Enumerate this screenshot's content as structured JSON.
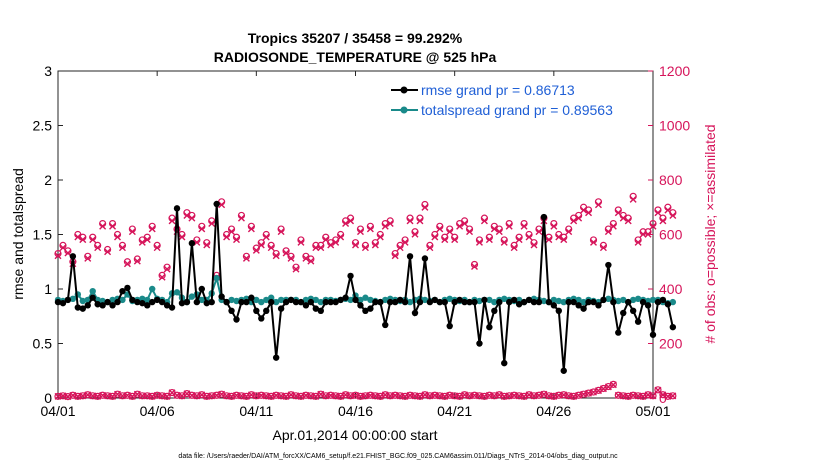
{
  "chart_data": {
    "type": "line",
    "title_line1": "Tropics 35207 / 35458 = 99.292%",
    "title_line2": "RADIOSONDE_TEMPERATURE @ 525 hPa",
    "xlabel": "Apr.01,2014 00:00:00 start",
    "ylabel_left": "rmse and totalspread",
    "ylabel_right": "# of obs: o=possible; ×=assimilated",
    "footnote": "data file: /Users/raeder/DAI/ATM_forcXX/CAM6_setup/f.e21.FHIST_BGC.f09_025.CAM6assim.011/Diags_NTrS_2014-04/obs_diag_output.nc",
    "xlim": [
      0,
      30
    ],
    "ylim_left": [
      0,
      3
    ],
    "ylim_right": [
      0,
      1200
    ],
    "x_ticks": [
      0,
      5,
      10,
      15,
      20,
      25,
      30
    ],
    "x_tick_labels": [
      "04/01",
      "04/06",
      "04/11",
      "04/16",
      "04/21",
      "04/26",
      "05/01"
    ],
    "y_left_ticks": [
      "0",
      "0.5",
      "1",
      "1.5",
      "2",
      "2.5",
      "3"
    ],
    "y_right_ticks": [
      "0",
      "200",
      "400",
      "600",
      "800",
      "1000",
      "1200"
    ],
    "colors": {
      "rmse": "#000000",
      "spread": "#1a8a8a",
      "obs": "#d6145a",
      "legend_text": "#1f5fd6"
    },
    "x_step_days": 0.25,
    "series": [
      {
        "name": "rmse grand pr = 0.86713",
        "axis": "left",
        "values": [
          0.88,
          0.87,
          0.9,
          1.3,
          0.83,
          0.82,
          0.85,
          0.92,
          0.86,
          0.85,
          0.88,
          0.85,
          0.88,
          0.98,
          1.01,
          0.9,
          0.88,
          0.87,
          0.85,
          0.88,
          0.9,
          0.88,
          0.85,
          0.83,
          1.74,
          0.87,
          0.88,
          1.42,
          0.88,
          1.0,
          0.87,
          0.88,
          1.78,
          0.93,
          0.88,
          0.8,
          0.72,
          0.88,
          0.88,
          0.92,
          0.8,
          0.73,
          0.8,
          0.88,
          0.37,
          0.82,
          0.88,
          0.9,
          0.88,
          0.88,
          0.85,
          0.88,
          0.82,
          0.8,
          0.88,
          0.88,
          0.88,
          0.9,
          0.92,
          1.12,
          0.9,
          0.85,
          0.8,
          0.82,
          0.88,
          0.88,
          0.67,
          0.88,
          0.88,
          0.9,
          0.88,
          1.3,
          0.78,
          0.88,
          1.28,
          0.88,
          0.9,
          0.88,
          0.88,
          0.66,
          0.88,
          0.9,
          0.88,
          0.88,
          0.88,
          0.5,
          0.9,
          0.65,
          0.8,
          0.88,
          0.32,
          0.88,
          0.9,
          0.86,
          0.88,
          0.9,
          0.88,
          0.88,
          1.66,
          0.88,
          0.85,
          0.8,
          0.25,
          0.88,
          0.88,
          0.85,
          0.82,
          0.88,
          0.88,
          0.85,
          0.9,
          1.22,
          0.88,
          0.6,
          0.78,
          0.88,
          0.8,
          0.7,
          0.88,
          0.85,
          0.58,
          0.88,
          0.9,
          0.86,
          0.65
        ]
      },
      {
        "name": "totalspread grand pr = 0.89563",
        "axis": "left",
        "values": [
          0.9,
          0.89,
          0.9,
          0.91,
          0.95,
          0.89,
          0.9,
          0.98,
          0.9,
          0.89,
          0.88,
          0.9,
          0.91,
          0.9,
          0.95,
          0.89,
          0.9,
          0.91,
          0.9,
          1.0,
          0.91,
          0.9,
          0.88,
          0.96,
          0.97,
          0.92,
          0.88,
          0.93,
          0.95,
          0.9,
          0.9,
          0.96,
          1.1,
          0.9,
          0.88,
          0.9,
          0.89,
          0.9,
          0.91,
          0.88,
          0.9,
          0.88,
          0.9,
          0.92,
          0.88,
          0.9,
          0.9,
          0.9,
          0.9,
          0.88,
          0.9,
          0.91,
          0.9,
          0.88,
          0.9,
          0.9,
          0.89,
          0.9,
          0.91,
          0.9,
          0.94,
          0.9,
          0.92,
          0.9,
          0.89,
          0.88,
          0.9,
          0.91,
          0.9,
          0.89,
          0.9,
          0.88,
          0.9,
          0.91,
          0.9,
          0.89,
          0.9,
          0.88,
          0.9,
          0.91,
          0.9,
          0.89,
          0.9,
          0.88,
          0.9,
          0.89,
          0.9,
          0.9,
          0.88,
          0.9,
          0.91,
          0.9,
          0.89,
          0.9,
          0.88,
          0.9,
          0.91,
          0.9,
          0.89,
          0.88,
          0.9,
          0.89,
          0.88,
          0.9,
          0.91,
          0.9,
          0.88,
          0.9,
          0.89,
          0.88,
          0.9,
          0.91,
          0.9,
          0.89,
          0.9,
          0.88,
          0.9,
          0.91,
          0.9,
          0.89,
          0.9,
          0.9,
          0.88,
          0.87,
          0.88
        ]
      },
      {
        "name": "obs possible (o)",
        "axis": "right",
        "values": [
          530,
          560,
          540,
          500,
          600,
          590,
          520,
          590,
          560,
          640,
          545,
          640,
          600,
          560,
          500,
          620,
          510,
          580,
          590,
          630,
          560,
          450,
          480,
          660,
          620,
          600,
          680,
          670,
          580,
          630,
          570,
          650,
          450,
          720,
          600,
          620,
          590,
          670,
          520,
          630,
          550,
          570,
          600,
          560,
          530,
          620,
          540,
          520,
          480,
          580,
          520,
          510,
          560,
          560,
          590,
          570,
          580,
          600,
          650,
          660,
          570,
          620,
          560,
          630,
          570,
          600,
          640,
          650,
          530,
          560,
          580,
          660,
          610,
          660,
          710,
          560,
          600,
          630,
          590,
          620,
          590,
          640,
          650,
          620,
          490,
          580,
          660,
          590,
          630,
          620,
          580,
          640,
          560,
          590,
          640,
          600,
          570,
          620,
          660,
          590,
          640,
          600,
          590,
          620,
          660,
          670,
          700,
          690,
          580,
          720,
          560,
          620,
          640,
          690,
          670,
          660,
          740,
          580,
          610,
          610,
          640,
          690,
          660,
          700,
          680
        ],
        "assimilated_scale": 0.985
      },
      {
        "name": "obs lowband (o)",
        "axis": "right",
        "values": [
          6,
          8,
          5,
          10,
          6,
          8,
          12,
          8,
          6,
          10,
          8,
          6,
          14,
          8,
          10,
          6,
          14,
          8,
          8,
          6,
          10,
          8,
          6,
          20,
          10,
          8,
          16,
          10,
          8,
          12,
          6,
          8,
          10,
          14,
          8,
          6,
          10,
          8,
          6,
          12,
          8,
          10,
          8,
          6,
          10,
          8,
          6,
          12,
          8,
          6,
          10,
          8,
          6,
          14,
          8,
          10,
          8,
          6,
          12,
          8,
          10,
          6,
          8,
          10,
          8,
          6,
          12,
          8,
          10,
          8,
          6,
          10,
          8,
          6,
          12,
          8,
          10,
          8,
          6,
          10,
          8,
          6,
          12,
          8,
          10,
          8,
          6,
          10,
          8,
          12,
          6,
          8,
          10,
          8,
          6,
          12,
          8,
          10,
          14,
          8,
          6,
          10,
          12,
          8,
          6,
          10,
          14,
          18,
          22,
          28,
          35,
          42,
          50,
          10,
          8,
          6,
          10,
          8,
          6,
          12,
          8,
          30,
          12,
          6,
          8
        ]
      }
    ]
  }
}
